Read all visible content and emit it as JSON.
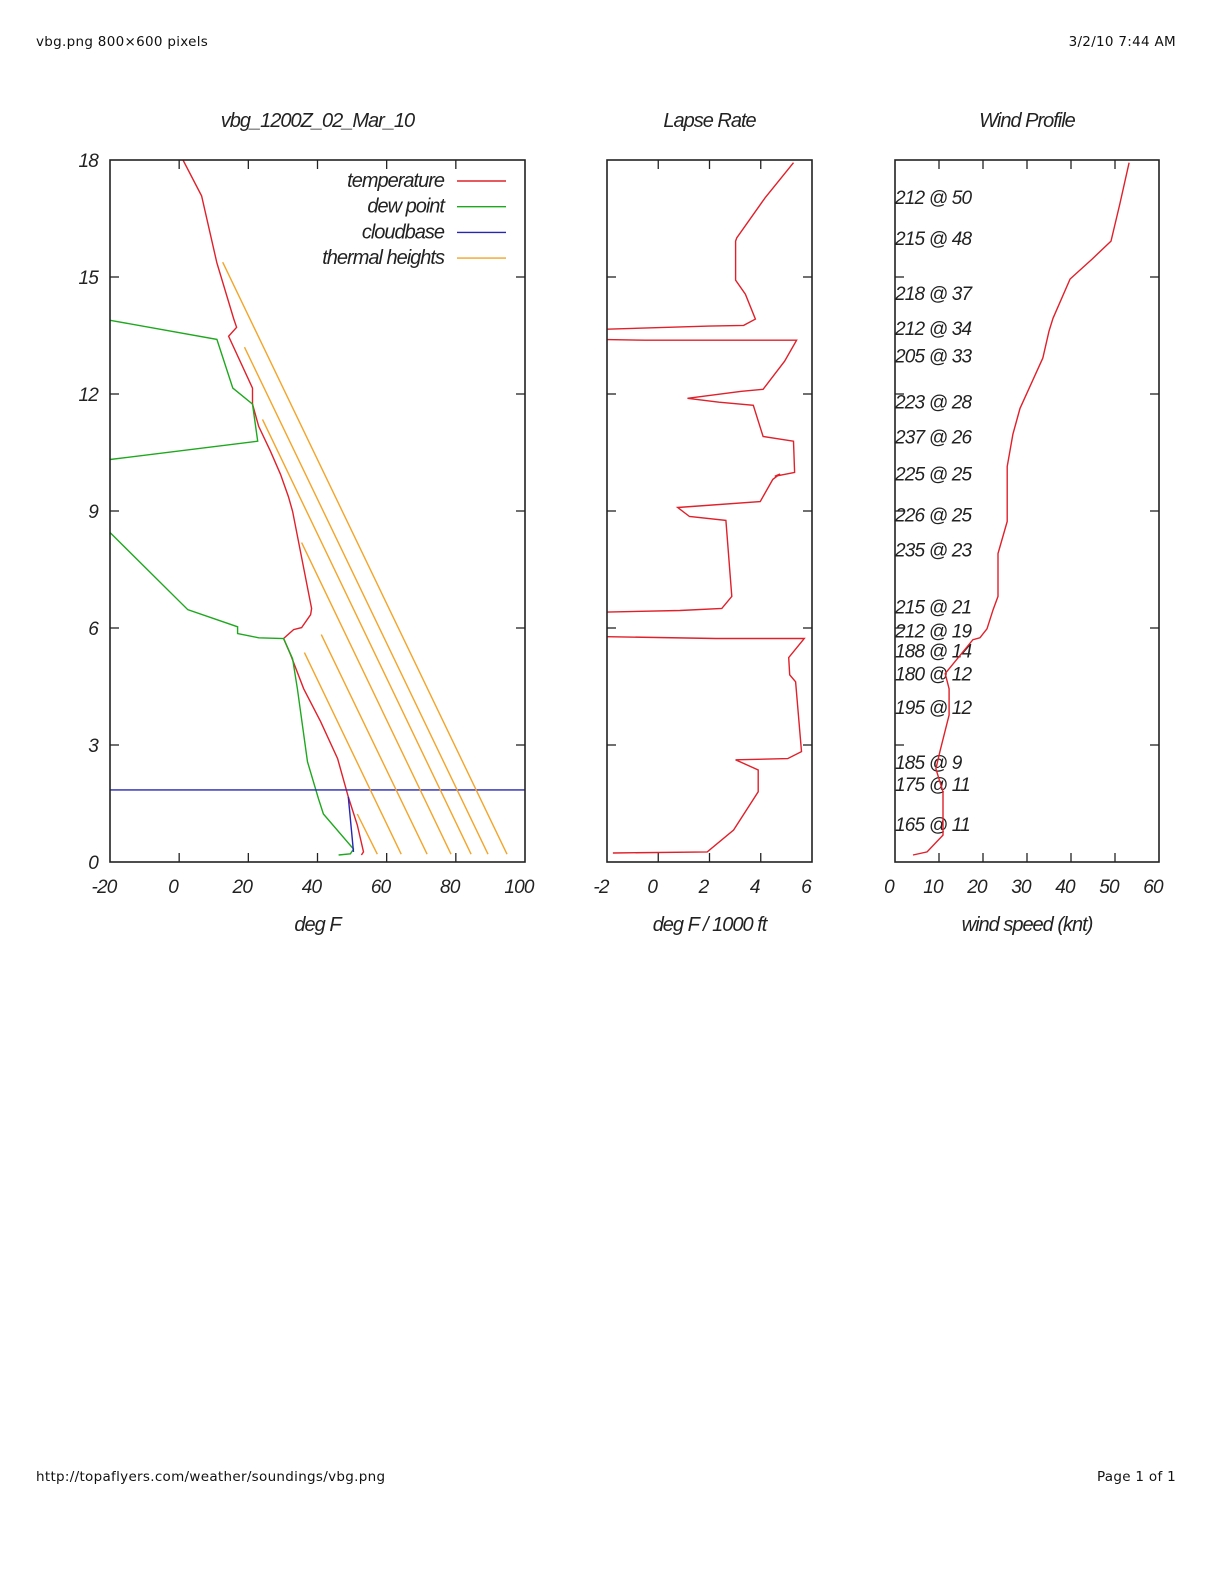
{
  "page": {
    "header_left": "vbg.png 800×600 pixels",
    "header_right": "3/2/10 7:44 AM",
    "footer_left": "http://topaflyers.com/weather/soundings/vbg.png",
    "footer_right": "Page 1 of 1"
  },
  "chart_data": [
    {
      "type": "line",
      "title": "vbg_1200Z_02_Mar_10",
      "xlabel": "deg F",
      "ylabel": "",
      "xlim": [
        -20,
        100
      ],
      "ylim": [
        0,
        18
      ],
      "xticks": [
        -20,
        0,
        20,
        40,
        60,
        80,
        100
      ],
      "yticks": [
        0,
        3,
        6,
        9,
        12,
        15,
        18
      ],
      "grid": false,
      "legend_position": "top-right",
      "series": [
        {
          "name": "temperature",
          "color": "#e0202a",
          "segments": [
            [
              [
                1.1,
                18.0
              ],
              [
                6.5,
                17.08
              ],
              [
                10.9,
                15.36
              ],
              [
                15.8,
                13.92
              ],
              [
                16.6,
                13.71
              ],
              [
                14.3,
                13.48
              ],
              [
                21.2,
                12.15
              ],
              [
                21.2,
                11.74
              ],
              [
                23.0,
                11.17
              ],
              [
                26.4,
                10.53
              ],
              [
                29.3,
                9.94
              ],
              [
                31.6,
                9.37
              ],
              [
                32.8,
                8.99
              ],
              [
                38.3,
                6.5
              ],
              [
                38.0,
                6.34
              ],
              [
                35.4,
                6.01
              ],
              [
                33.1,
                5.96
              ],
              [
                30.2,
                5.73
              ],
              [
                32.2,
                5.32
              ],
              [
                36.0,
                4.44
              ],
              [
                40.9,
                3.6
              ],
              [
                45.8,
                2.65
              ],
              [
                48.9,
                1.67
              ],
              [
                51.5,
                0.95
              ],
              [
                53.3,
                0.26
              ],
              [
                52.7,
                0.18
              ]
            ]
          ]
        },
        {
          "name": "dew point",
          "color": "#1ea81e",
          "segments": [
            [
              [
                -20,
                13.89
              ],
              [
                10.9,
                13.4
              ],
              [
                15.5,
                12.15
              ],
              [
                21.2,
                11.74
              ],
              [
                22.7,
                10.79
              ],
              [
                -20,
                10.32
              ]
            ],
            [
              [
                -20,
                8.45
              ],
              [
                2.5,
                6.47
              ],
              [
                16.9,
                6.03
              ],
              [
                16.9,
                5.86
              ],
              [
                23.0,
                5.75
              ],
              [
                30.2,
                5.73
              ],
              [
                32.8,
                5.21
              ],
              [
                34.2,
                4.44
              ],
              [
                37.1,
                2.57
              ],
              [
                40.3,
                1.62
              ],
              [
                41.7,
                1.23
              ],
              [
                50.4,
                0.33
              ],
              [
                49.5,
                0.21
              ],
              [
                46.1,
                0.18
              ]
            ]
          ]
        },
        {
          "name": "cloudbase",
          "color": "#2626b4",
          "segments": [
            [
              [
                -20,
                1.85
              ],
              [
                100,
                1.85
              ]
            ],
            [
              [
                48.9,
                1.67
              ],
              [
                50.4,
                0.26
              ]
            ]
          ]
        },
        {
          "name": "thermal heights",
          "color": "#f4a428",
          "segments": [
            [
              [
                12.6,
                15.38
              ],
              [
                94.8,
                0.2
              ]
            ],
            [
              [
                18.9,
                13.2
              ],
              [
                89.3,
                0.2
              ]
            ],
            [
              [
                24.1,
                11.35
              ],
              [
                84.4,
                0.2
              ]
            ],
            [
              [
                35.4,
                8.19
              ],
              [
                78.6,
                0.2
              ]
            ],
            [
              [
                41.1,
                5.83
              ],
              [
                71.7,
                0.2
              ]
            ],
            [
              [
                36.2,
                5.37
              ],
              [
                64.2,
                0.2
              ]
            ],
            [
              [
                51.5,
                1.23
              ],
              [
                57.3,
                0.2
              ]
            ]
          ]
        }
      ]
    },
    {
      "type": "line",
      "title": "Lapse Rate",
      "xlabel": "deg F / 1000 ft",
      "ylabel": "",
      "xlim": [
        -2,
        6
      ],
      "ylim": [
        0,
        18
      ],
      "xticks": [
        -2,
        0,
        2,
        4,
        6
      ],
      "yticks": [
        0,
        3,
        6,
        9,
        12,
        15,
        18
      ],
      "grid": false,
      "series": [
        {
          "name": "lapse rate",
          "color": "#e0202a",
          "segments": [
            [
              [
                5.28,
                17.93
              ],
              [
                4.17,
                17.03
              ],
              [
                3.06,
                16.0
              ],
              [
                3.02,
                15.92
              ],
              [
                3.02,
                14.92
              ],
              [
                3.4,
                14.56
              ],
              [
                3.79,
                13.92
              ],
              [
                3.33,
                13.76
              ],
              [
                1.98,
                13.74
              ],
              [
                -0.58,
                13.69
              ],
              [
                -4,
                13.62
              ],
              [
                -4,
                13.42
              ],
              [
                -0.5,
                13.38
              ],
              [
                5.4,
                13.38
              ],
              [
                4.93,
                12.84
              ],
              [
                4.09,
                12.12
              ],
              [
                3.25,
                12.07
              ],
              [
                1.14,
                11.89
              ],
              [
                2.37,
                11.79
              ],
              [
                3.71,
                11.71
              ],
              [
                4.09,
                10.91
              ],
              [
                5.28,
                10.79
              ],
              [
                5.32,
                9.99
              ],
              [
                4.55,
                9.89
              ],
              [
                4.75,
                9.95
              ],
              [
                4.47,
                9.81
              ],
              [
                3.98,
                9.24
              ],
              [
                0.76,
                9.09
              ],
              [
                1.22,
                8.86
              ],
              [
                2.64,
                8.76
              ],
              [
                2.87,
                6.81
              ],
              [
                2.48,
                6.5
              ],
              [
                0.84,
                6.45
              ],
              [
                -4,
                6.38
              ],
              [
                -4,
                5.8
              ],
              [
                2.25,
                5.73
              ],
              [
                5.7,
                5.73
              ],
              [
                5.09,
                5.24
              ],
              [
                5.13,
                4.8
              ],
              [
                5.36,
                4.62
              ],
              [
                5.59,
                2.83
              ],
              [
                5.05,
                2.65
              ],
              [
                3.02,
                2.62
              ],
              [
                3.9,
                2.36
              ],
              [
                3.9,
                1.8
              ],
              [
                2.94,
                0.82
              ],
              [
                1.91,
                0.26
              ],
              [
                -1.77,
                0.23
              ]
            ]
          ]
        }
      ]
    },
    {
      "type": "line",
      "title": "Wind Profile",
      "xlabel": "wind speed (knt)",
      "ylabel": "",
      "xlim": [
        0,
        60
      ],
      "ylim": [
        0,
        18
      ],
      "xticks": [
        0,
        10,
        20,
        30,
        40,
        50,
        60
      ],
      "yticks": [
        0,
        3,
        6,
        9,
        12,
        15,
        18
      ],
      "grid": false,
      "series": [
        {
          "name": "wind speed",
          "color": "#e0202a",
          "segments": [
            [
              [
                53.2,
                17.93
              ],
              [
                51.1,
                16.87
              ],
              [
                49.1,
                15.92
              ],
              [
                44.8,
                15.46
              ],
              [
                39.8,
                14.95
              ],
              [
                35.9,
                13.94
              ],
              [
                35.0,
                13.61
              ],
              [
                33.6,
                12.92
              ],
              [
                28.4,
                11.63
              ],
              [
                26.8,
                10.97
              ],
              [
                25.5,
                10.14
              ],
              [
                25.5,
                9.04
              ],
              [
                25.5,
                8.73
              ],
              [
                23.4,
                7.91
              ],
              [
                23.4,
                6.81
              ],
              [
                22.3,
                6.47
              ],
              [
                20.9,
                5.98
              ],
              [
                19.3,
                5.75
              ],
              [
                17.7,
                5.7
              ],
              [
                11.4,
                4.83
              ],
              [
                12.3,
                4.44
              ],
              [
                12.3,
                3.77
              ],
              [
                10.2,
                2.83
              ],
              [
                9.3,
                2.39
              ],
              [
                10.9,
                1.8
              ],
              [
                10.9,
                0.69
              ],
              [
                7.3,
                0.26
              ],
              [
                4.1,
                0.18
              ]
            ]
          ]
        }
      ],
      "annotations": [
        {
          "text": "212 @ 50",
          "altitude": 17.05
        },
        {
          "text": "215 @ 48",
          "altitude": 16.0
        },
        {
          "text": "218 @ 37",
          "altitude": 14.59
        },
        {
          "text": "212 @ 34",
          "altitude": 13.69
        },
        {
          "text": "205 @ 33",
          "altitude": 12.99
        },
        {
          "text": "223 @ 28",
          "altitude": 11.81
        },
        {
          "text": "237 @ 26",
          "altitude": 10.91
        },
        {
          "text": "225 @ 25",
          "altitude": 9.96
        },
        {
          "text": "226 @ 25",
          "altitude": 8.91
        },
        {
          "text": "235 @ 23",
          "altitude": 8.01
        },
        {
          "text": "215 @ 21",
          "altitude": 6.55
        },
        {
          "text": "212 @ 19",
          "altitude": 5.93
        },
        {
          "text": "188 @ 14",
          "altitude": 5.42
        },
        {
          "text": "180 @ 12",
          "altitude": 4.83
        },
        {
          "text": "195 @ 12",
          "altitude": 3.98
        },
        {
          "text": "185 @ 9",
          "altitude": 2.57
        },
        {
          "text": "175 @ 11",
          "altitude": 2.0
        },
        {
          "text": "165 @ 11",
          "altitude": 0.98
        }
      ]
    }
  ]
}
